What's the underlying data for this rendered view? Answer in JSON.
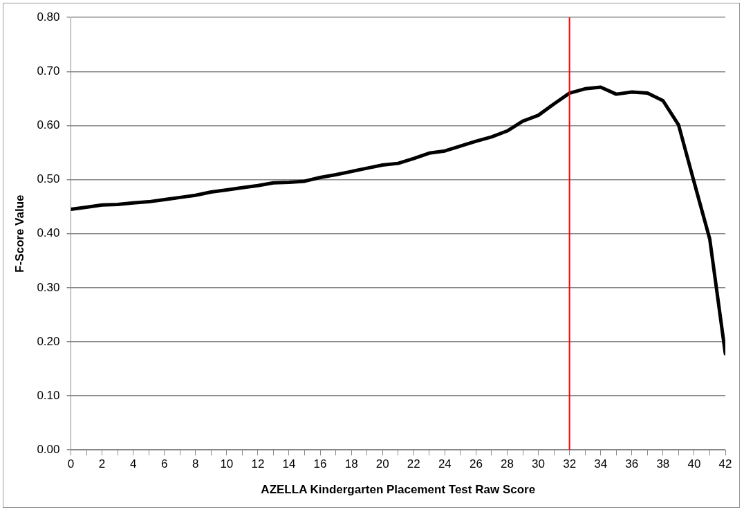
{
  "chart_data": {
    "type": "line",
    "xlabel": "AZELLA Kindergarten Placement Test Raw Score",
    "ylabel": "F-Score Value",
    "x": [
      0,
      1,
      2,
      3,
      4,
      5,
      6,
      7,
      8,
      9,
      10,
      11,
      12,
      13,
      14,
      15,
      16,
      17,
      18,
      19,
      20,
      21,
      22,
      23,
      24,
      25,
      26,
      27,
      28,
      29,
      30,
      31,
      32,
      33,
      34,
      35,
      36,
      37,
      38,
      39,
      40,
      41,
      42
    ],
    "series": [
      {
        "color": "#000000",
        "values": [
          0.445,
          0.449,
          0.453,
          0.454,
          0.457,
          0.459,
          0.463,
          0.467,
          0.471,
          0.477,
          0.481,
          0.485,
          0.489,
          0.494,
          0.495,
          0.497,
          0.504,
          0.509,
          0.515,
          0.521,
          0.527,
          0.53,
          0.539,
          0.549,
          0.553,
          0.562,
          0.571,
          0.579,
          0.59,
          0.608,
          0.619,
          0.64,
          0.66,
          0.668,
          0.671,
          0.658,
          0.662,
          0.66,
          0.646,
          0.601,
          0.495,
          0.39,
          0.178
        ]
      }
    ],
    "xlim": [
      0,
      42
    ],
    "xticks": [
      0,
      {
        "value": 1,
        "label": null
      },
      2,
      {
        "value": 3,
        "label": null
      },
      4,
      {
        "value": 5,
        "label": null
      },
      6,
      {
        "value": 7,
        "label": null
      },
      8,
      {
        "value": 9,
        "label": null
      },
      10,
      {
        "value": 11,
        "label": null
      },
      12,
      {
        "value": 13,
        "label": null
      },
      14,
      {
        "value": 15,
        "label": null
      },
      16,
      {
        "value": 17,
        "label": null
      },
      18,
      {
        "value": 19,
        "label": null
      },
      20,
      {
        "value": 21,
        "label": null
      },
      22,
      {
        "value": 23,
        "label": null
      },
      24,
      {
        "value": 25,
        "label": null
      },
      26,
      {
        "value": 27,
        "label": null
      },
      28,
      {
        "value": 29,
        "label": null
      },
      30,
      {
        "value": 31,
        "label": null
      },
      32,
      {
        "value": 33,
        "label": null
      },
      34,
      {
        "value": 35,
        "label": null
      },
      36,
      {
        "value": 37,
        "label": null
      },
      38,
      {
        "value": 39,
        "label": null
      },
      40,
      {
        "value": 41,
        "label": null
      },
      42
    ],
    "ylim": [
      0,
      0.8
    ],
    "yticks": [
      {
        "value": 0,
        "label": "0.00"
      },
      {
        "value": 0.1,
        "label": "0.10"
      },
      {
        "value": 0.2,
        "label": "0.20"
      },
      {
        "value": 0.3,
        "label": "0.30"
      },
      {
        "value": 0.4,
        "label": "0.40"
      },
      {
        "value": 0.5,
        "label": "0.50"
      },
      {
        "value": 0.6,
        "label": "0.60"
      },
      {
        "value": 0.7,
        "label": "0.70"
      },
      {
        "value": 0.8,
        "label": "0.80"
      }
    ],
    "ref_lines": [
      {
        "axis": "x",
        "value": 32,
        "color": "#ff0000"
      }
    ],
    "grid": "y",
    "marker": "none",
    "line_style": "solid"
  }
}
